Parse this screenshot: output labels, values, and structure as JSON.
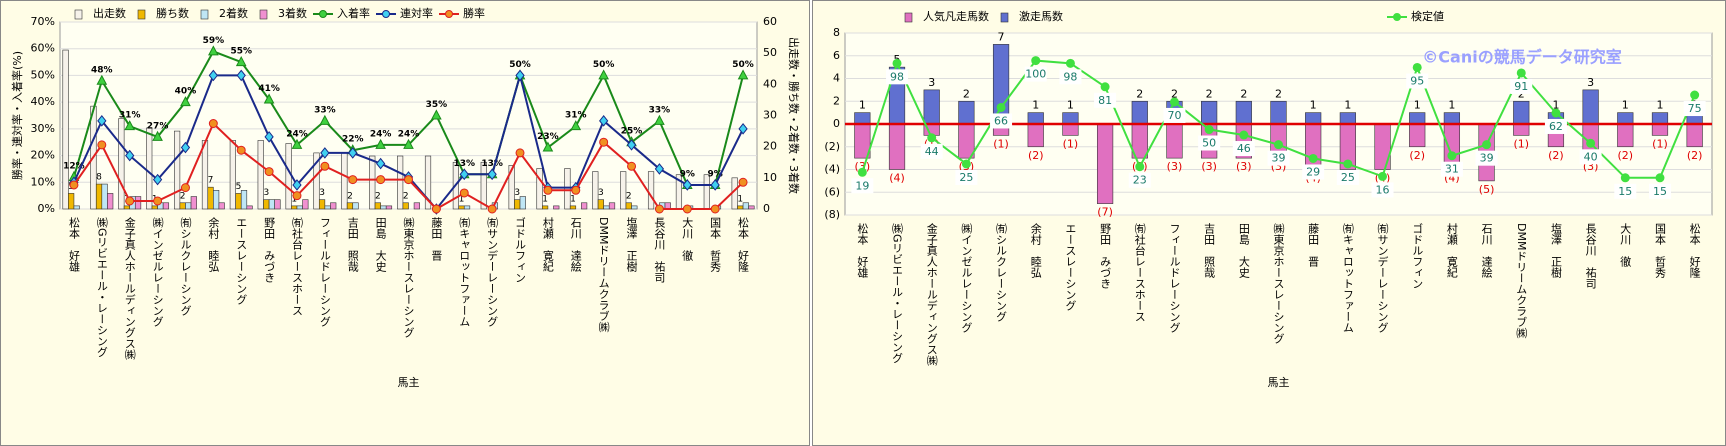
{
  "chart_data": [
    {
      "type": "combo",
      "bar_mode": "group",
      "grid": true,
      "legend": "top",
      "x_label": "馬主",
      "y_label": "勝率・連対率・入着率(%)",
      "y2_label": "出走数・勝ち数・2着数・3着数",
      "categories": [
        "松本　好雄",
        "㈱Gリビエール・レーシング",
        "金子真人ホールディングス㈱",
        "㈱インゼルレーシング",
        "㈲シルクレーシング",
        "余村　睦弘",
        "エースレーシング",
        "野田　みづき",
        "㈲社台レースホース",
        "フィールドレーシング",
        "吉田　照哉",
        "田島　大史",
        "㈱東京ホースレーシング",
        "藤田　晋",
        "㈲キャロットファーム",
        "㈲サンデーレーシング",
        "ゴドルフィン",
        "村瀬　寛紀",
        "石川　達絵",
        "DMMドリームクラブ㈱",
        "塩澤　正樹",
        "長谷川　祐司",
        "大川　徹",
        "国本　哲秀",
        "松本　好隆"
      ],
      "ylim": [
        0,
        70
      ],
      "yticks": [
        {
          "value": 0,
          "label": "0%"
        },
        {
          "value": 10,
          "label": "10%"
        },
        {
          "value": 20,
          "label": "20%"
        },
        {
          "value": 30,
          "label": "30%"
        },
        {
          "value": 40,
          "label": "40%"
        },
        {
          "value": 50,
          "label": "50%"
        },
        {
          "value": 60,
          "label": "60%"
        },
        {
          "value": 70,
          "label": "70%"
        }
      ],
      "y2lim": [
        0,
        60
      ],
      "y2ticks": [
        0,
        10,
        20,
        30,
        40,
        50,
        60
      ],
      "series": [
        {
          "name": "出走数",
          "kind": "bar",
          "axis": "y2",
          "color": "#f6f2ea",
          "values": [
            51,
            33,
            29,
            26,
            25,
            22,
            22,
            22,
            21,
            18,
            18,
            17,
            17,
            17,
            15,
            15,
            14,
            13,
            13,
            12,
            12,
            12,
            11,
            11,
            10
          ]
        },
        {
          "name": "勝ち数",
          "kind": "bar",
          "axis": "y2",
          "color": "#f0b800",
          "show_labels": true,
          "values": [
            5,
            8,
            1,
            1,
            2,
            7,
            5,
            3,
            1,
            3,
            2,
            2,
            2,
            0,
            1,
            0,
            3,
            1,
            1,
            3,
            2,
            0,
            0,
            0,
            1
          ]
        },
        {
          "name": "2着数",
          "kind": "bar",
          "axis": "y2",
          "color": "#bfe6f5",
          "values": [
            1,
            8,
            4,
            2,
            2,
            6,
            6,
            3,
            1,
            1,
            2,
            1,
            0,
            0,
            1,
            2,
            4,
            0,
            0,
            1,
            1,
            2,
            1,
            1,
            2
          ]
        },
        {
          "name": "3着数",
          "kind": "bar",
          "axis": "y2",
          "color": "#f090d0",
          "values": [
            0,
            5,
            4,
            2,
            4,
            2,
            1,
            3,
            3,
            2,
            0,
            1,
            2,
            0,
            0,
            0,
            0,
            1,
            2,
            2,
            0,
            2,
            0,
            0,
            1
          ]
        },
        {
          "name": "入着率",
          "kind": "line",
          "color": "#1a8a1a",
          "marker": "triangle",
          "marker_color": "#40d040",
          "label_pos": "above",
          "values": [
            12,
            48,
            31,
            27,
            40,
            59,
            55,
            41,
            24,
            33,
            22,
            24,
            24,
            35,
            13,
            13,
            50,
            23,
            31,
            50,
            25,
            33,
            9,
            9,
            50
          ],
          "value_labels": [
            "12%",
            "48%",
            "31%",
            "27%",
            "40%",
            "59%",
            "55%",
            "41%",
            "24%",
            "33%",
            "22%",
            "24%",
            "24%",
            "35%",
            "13%",
            "13%",
            "50%",
            "23%",
            "31%",
            "50%",
            "25%",
            "33%",
            "9%",
            "9%",
            "50%"
          ]
        },
        {
          "name": "連対率",
          "kind": "line",
          "color": "#1a2a8a",
          "marker": "diamond",
          "marker_color": "#40d0f0",
          "values": [
            10,
            33,
            20,
            11,
            23,
            50,
            50,
            27,
            9,
            21,
            21,
            17,
            12,
            0,
            13,
            13,
            50,
            8,
            8,
            33,
            24,
            15,
            9,
            9,
            30
          ]
        },
        {
          "name": "勝率",
          "kind": "line",
          "color": "#e02020",
          "marker": "circle",
          "marker_color": "#f09020",
          "values": [
            9,
            24,
            3,
            3,
            8,
            32,
            22,
            14,
            5,
            16,
            11,
            11,
            11,
            0,
            6,
            0,
            21,
            7,
            7,
            25,
            16,
            0,
            0,
            0,
            10
          ]
        }
      ]
    },
    {
      "type": "combo",
      "bar_mode": "overlay",
      "grid": true,
      "legend": "top",
      "zero_line_color": "#e00000",
      "x_label": "馬主",
      "watermark": "©Caniの競馬データ研究室",
      "categories": [
        "松本　好雄",
        "㈱Gリビエール・レーシング",
        "金子真人ホールディングス㈱",
        "㈱インゼルレーシング",
        "㈲シルクレーシング",
        "余村　睦弘",
        "エースレーシング",
        "野田　みづき",
        "㈲社台レースホース",
        "フィールドレーシング",
        "吉田　照哉",
        "田島　大史",
        "㈱東京ホースレーシング",
        "藤田　晋",
        "㈲キャロットファーム",
        "㈲サンデーレーシング",
        "ゴドルフィン",
        "村瀬　寛紀",
        "石川　達絵",
        "DMMドリームクラブ㈱",
        "塩澤　正樹",
        "長谷川　祐司",
        "大川　徹",
        "国本　哲秀",
        "松本　好隆"
      ],
      "ylim": [
        -8,
        8
      ],
      "yticks": [
        {
          "value": -8,
          "label": "(8)"
        },
        {
          "value": -6,
          "label": "(6)"
        },
        {
          "value": -4,
          "label": "(4)"
        },
        {
          "value": -2,
          "label": "(2)"
        },
        0,
        2,
        4,
        6,
        8
      ],
      "y2lim": [
        -12,
        120
      ],
      "series": [
        {
          "name": "人気凡走馬数",
          "kind": "bar",
          "color": "#e070c0",
          "label_color": "#e00000",
          "values": [
            -3,
            -4,
            -1,
            -3,
            -1,
            -2,
            -1,
            -7,
            -3,
            -3,
            -3,
            -3,
            -3,
            -4,
            -4,
            -4,
            -2,
            -4,
            -5,
            -1,
            -2,
            -3,
            -2,
            -1,
            -2
          ],
          "value_labels": [
            "(3)",
            "(4)",
            "(1)",
            "(3)",
            "(1)",
            "(2)",
            "(1)",
            "(7)",
            "(3)",
            "(3)",
            "(3)",
            "(3)",
            "(3)",
            "(4)",
            "(4)",
            "(4)",
            "(2)",
            "(4)",
            "(5)",
            "(1)",
            "(2)",
            "(3)",
            "(2)",
            "(1)",
            "(2)"
          ]
        },
        {
          "name": "激走馬数",
          "kind": "bar",
          "color": "#6070d0",
          "show_labels": true,
          "values": [
            1,
            5,
            3,
            2,
            7,
            1,
            1,
            0,
            2,
            2,
            2,
            2,
            2,
            1,
            1,
            0,
            1,
            1,
            0,
            2,
            1,
            3,
            1,
            1,
            1
          ]
        },
        {
          "name": "検定値",
          "kind": "line",
          "axis": "y2",
          "color": "#40e040",
          "marker": "circle",
          "marker_color": "#40e040",
          "show_labels": true,
          "label_pos": "boxed",
          "values": [
            19,
            98,
            44,
            25,
            66,
            100,
            98,
            81,
            23,
            70,
            50,
            46,
            39,
            29,
            25,
            16,
            95,
            31,
            39,
            91,
            62,
            40,
            15,
            15,
            75
          ]
        }
      ]
    }
  ]
}
